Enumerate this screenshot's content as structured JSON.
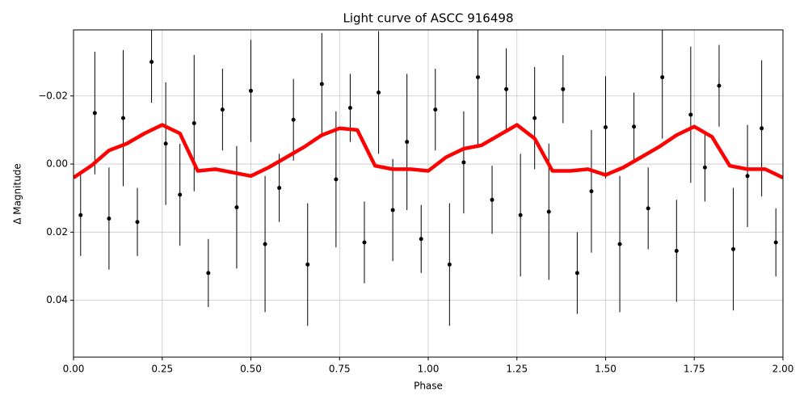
{
  "chart_data": {
    "type": "scatter",
    "title": "Light curve of ASCC 916498",
    "xlabel": "Phase",
    "ylabel": "Δ Magnitude",
    "color": "#000000",
    "x": [
      0.02,
      0.06,
      0.1,
      0.14,
      0.18,
      0.22,
      0.26,
      0.3,
      0.34,
      0.38,
      0.42,
      0.46,
      0.5,
      0.54,
      0.58,
      0.62,
      0.66,
      0.7,
      0.74,
      0.78,
      0.82,
      0.86,
      0.9,
      0.94,
      0.98,
      1.02,
      1.06,
      1.1,
      1.14,
      1.18,
      1.22,
      1.26,
      1.3,
      1.34,
      1.38,
      1.42,
      1.46,
      1.5,
      1.54,
      1.58,
      1.62,
      1.66,
      1.7,
      1.74,
      1.78,
      1.82,
      1.86,
      1.9,
      1.94,
      1.98
    ],
    "values": [
      0.015,
      -0.015,
      0.016,
      -0.0135,
      0.017,
      -0.03,
      -0.006,
      0.009,
      -0.012,
      0.032,
      -0.016,
      0.0127,
      -0.0215,
      0.0235,
      0.007,
      -0.013,
      0.0295,
      -0.0235,
      0.0045,
      -0.0165,
      0.023,
      -0.021,
      0.0135,
      -0.0065,
      0.022,
      -0.016,
      0.0295,
      -0.0005,
      -0.0255,
      0.0105,
      -0.022,
      0.015,
      -0.0135,
      0.014,
      -0.022,
      0.032,
      0.008,
      -0.0108,
      0.0235,
      -0.011,
      0.013,
      -0.0255,
      0.0255,
      -0.0145,
      0.001,
      -0.023,
      0.025,
      0.0035,
      -0.0105,
      0.023
    ],
    "errors": [
      0.012,
      0.018,
      0.015,
      0.02,
      0.01,
      0.012,
      0.018,
      0.015,
      0.02,
      0.01,
      0.012,
      0.018,
      0.015,
      0.02,
      0.01,
      0.012,
      0.018,
      0.015,
      0.02,
      0.01,
      0.012,
      0.018,
      0.015,
      0.02,
      0.01,
      0.012,
      0.018,
      0.015,
      0.02,
      0.01,
      0.012,
      0.018,
      0.015,
      0.02,
      0.01,
      0.012,
      0.018,
      0.015,
      0.02,
      0.01,
      0.012,
      0.018,
      0.015,
      0.02,
      0.01,
      0.012,
      0.018,
      0.015,
      0.02,
      0.01
    ],
    "fit": {
      "type": "line",
      "color": "#ff0000",
      "x": [
        0,
        0.05,
        0.1,
        0.15,
        0.2,
        0.25,
        0.3,
        0.35,
        0.4,
        0.45,
        0.5,
        0.55,
        0.6,
        0.65,
        0.7,
        0.75,
        0.8,
        0.85,
        0.9,
        0.95,
        1.0,
        1.05,
        1.1,
        1.15,
        1.2,
        1.25,
        1.3,
        1.35,
        1.4,
        1.45,
        1.5,
        1.55,
        1.6,
        1.65,
        1.7,
        1.75,
        1.8,
        1.85,
        1.9,
        1.95,
        2.0
      ],
      "values": [
        0.004,
        0.0005,
        -0.004,
        -0.006,
        -0.009,
        -0.0115,
        -0.009,
        0.002,
        0.0015,
        0.0025,
        0.0035,
        0.001,
        -0.002,
        -0.005,
        -0.0085,
        -0.0105,
        -0.01,
        0.0005,
        0.0015,
        0.0015,
        0.002,
        -0.002,
        -0.0045,
        -0.0055,
        -0.0085,
        -0.0115,
        -0.0075,
        0.002,
        0.002,
        0.0015,
        0.0032,
        0.001,
        -0.002,
        -0.005,
        -0.0085,
        -0.011,
        -0.008,
        0.0005,
        0.0015,
        0.0015,
        0.004
      ]
    },
    "xlim": [
      0,
      2
    ],
    "ylim": [
      0.0567,
      -0.0394
    ],
    "xticks": [
      {
        "value": 0,
        "label": "0.00"
      },
      {
        "value": 0.25,
        "label": "0.25"
      },
      {
        "value": 0.5,
        "label": "0.50"
      },
      {
        "value": 0.75,
        "label": "0.75"
      },
      {
        "value": 1,
        "label": "1.00"
      },
      {
        "value": 1.25,
        "label": "1.25"
      },
      {
        "value": 1.5,
        "label": "1.50"
      },
      {
        "value": 1.75,
        "label": "1.75"
      },
      {
        "value": 2,
        "label": "2.00"
      }
    ],
    "yticks": [
      {
        "value": -0.02,
        "label": "−0.02"
      },
      {
        "value": 0,
        "label": "0.00"
      },
      {
        "value": 0.02,
        "label": "0.02"
      },
      {
        "value": 0.04,
        "label": "0.04"
      }
    ],
    "grid": true
  }
}
